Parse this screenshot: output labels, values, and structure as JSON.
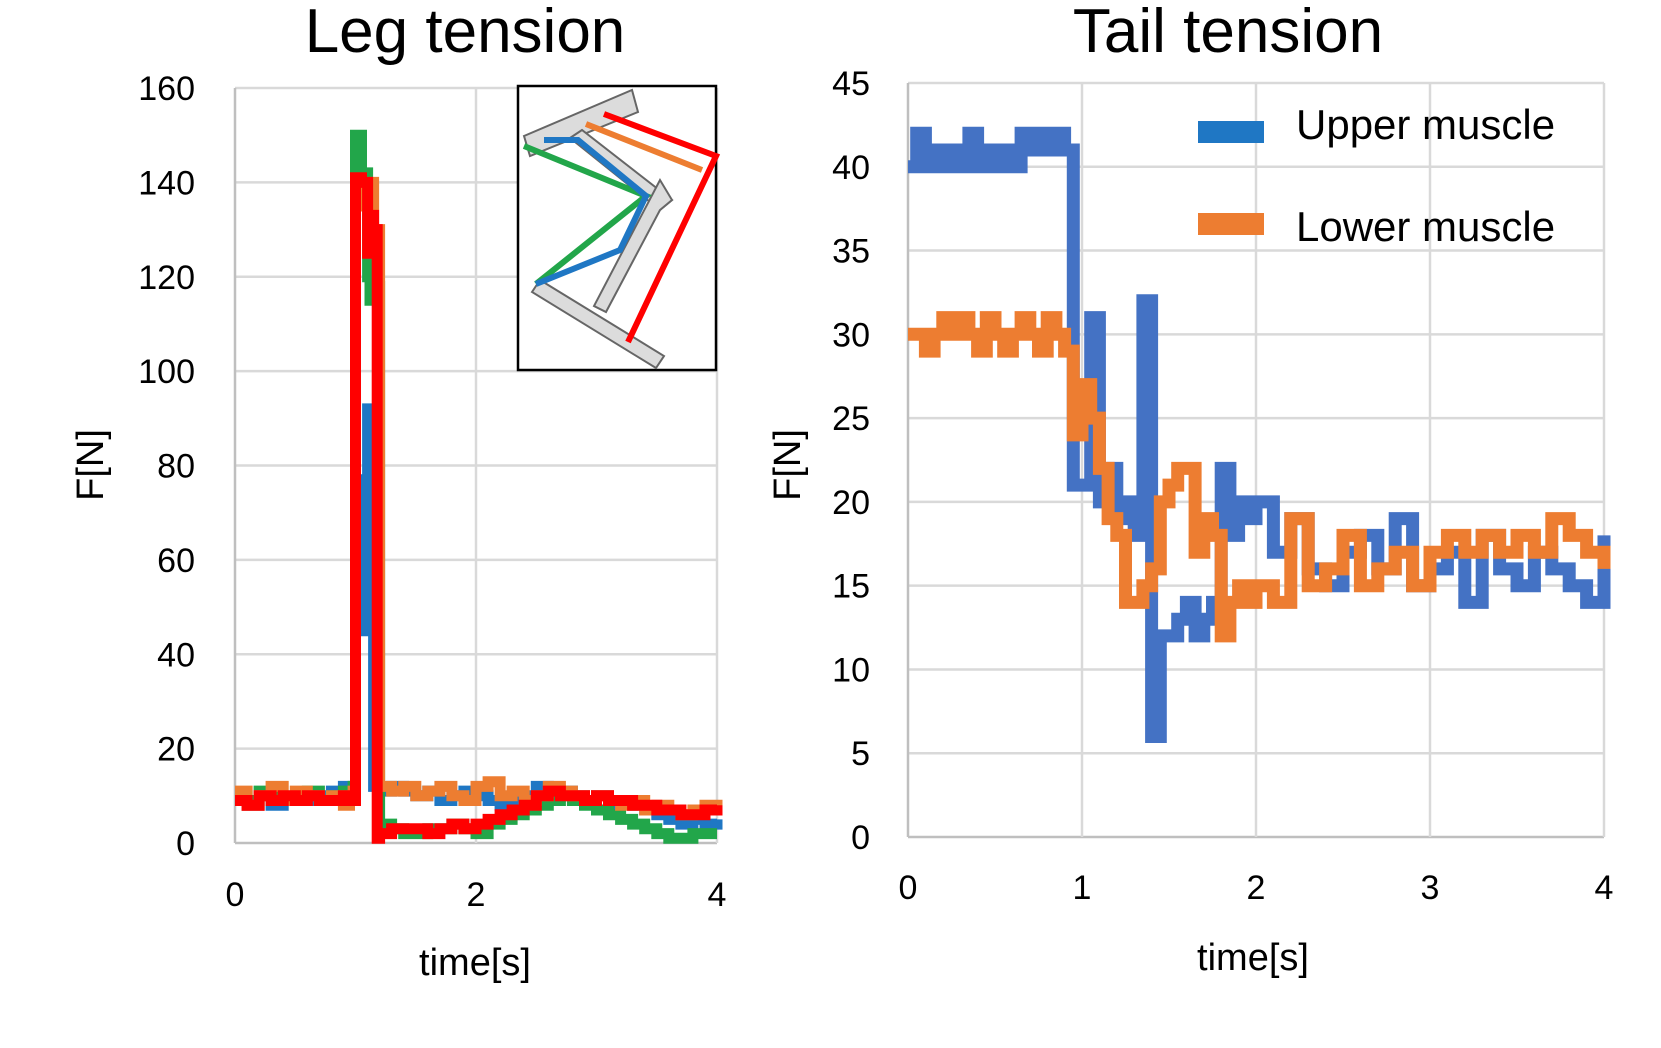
{
  "chart_data": [
    {
      "type": "line",
      "title": "Leg tension",
      "xlabel": "time[s]",
      "ylabel": "F[N]",
      "xlim": [
        0,
        4
      ],
      "ylim": [
        0,
        160
      ],
      "xticks": [
        "0",
        "2",
        "4"
      ],
      "yticks": [
        "0",
        "20",
        "40",
        "60",
        "80",
        "100",
        "120",
        "140",
        "160"
      ],
      "grid": true,
      "inset": "leg diagram with coloured muscle lines (blue, green, orange, red) over grey leg segments",
      "series": [
        {
          "color": "#1f77c4",
          "x": [
            0,
            0.1,
            0.2,
            0.3,
            0.4,
            0.5,
            0.6,
            0.7,
            0.8,
            0.9,
            0.95,
            0.98,
            1.0,
            1.05,
            1.08,
            1.1,
            1.13,
            1.15,
            1.2,
            1.3,
            1.4,
            1.5,
            1.6,
            1.7,
            1.8,
            1.9,
            2.0,
            2.1,
            2.2,
            2.3,
            2.4,
            2.5,
            2.6,
            2.7,
            2.8,
            2.9,
            3.0,
            3.1,
            3.2,
            3.3,
            3.4,
            3.5,
            3.6,
            3.7,
            3.8,
            3.9,
            4.0
          ],
          "y": [
            9,
            8,
            10,
            8,
            9,
            10,
            9,
            10,
            11,
            12,
            12,
            10,
            46,
            77,
            45,
            92,
            60,
            12,
            11,
            12,
            11,
            10,
            11,
            9,
            10,
            11,
            10,
            9,
            8,
            9,
            10,
            12,
            10,
            11,
            10,
            9,
            10,
            8,
            9,
            8,
            7,
            6,
            5,
            4,
            5,
            4,
            5
          ]
        },
        {
          "color": "#22a64a",
          "x": [
            0,
            0.1,
            0.2,
            0.3,
            0.4,
            0.5,
            0.6,
            0.7,
            0.8,
            0.9,
            0.95,
            0.98,
            1.0,
            1.05,
            1.1,
            1.12,
            1.15,
            1.2,
            1.3,
            1.4,
            1.5,
            1.6,
            1.7,
            1.8,
            1.9,
            2.0,
            2.1,
            2.2,
            2.3,
            2.4,
            2.5,
            2.6,
            2.7,
            2.8,
            2.9,
            3.0,
            3.1,
            3.2,
            3.3,
            3.4,
            3.5,
            3.6,
            3.7,
            3.8,
            3.9,
            4.0
          ],
          "y": [
            10,
            9,
            11,
            10,
            9,
            10,
            11,
            9,
            10,
            11,
            10,
            12,
            150,
            142,
            120,
            115,
            118,
            4,
            3,
            2,
            2,
            3,
            3,
            4,
            3,
            2,
            4,
            5,
            6,
            7,
            8,
            9,
            10,
            9,
            8,
            7,
            6,
            5,
            4,
            3,
            2,
            1,
            1,
            2,
            2,
            2
          ]
        },
        {
          "color": "#ed7d31",
          "x": [
            0,
            0.1,
            0.2,
            0.3,
            0.4,
            0.5,
            0.6,
            0.7,
            0.8,
            0.9,
            0.95,
            0.98,
            1.0,
            1.05,
            1.1,
            1.15,
            1.2,
            1.3,
            1.4,
            1.5,
            1.6,
            1.7,
            1.8,
            1.9,
            2.0,
            2.1,
            2.2,
            2.3,
            2.4,
            2.5,
            2.6,
            2.7,
            2.8,
            2.9,
            3.0,
            3.1,
            3.2,
            3.3,
            3.4,
            3.5,
            3.6,
            3.7,
            3.8,
            3.9,
            4.0
          ],
          "y": [
            11,
            8,
            10,
            12,
            9,
            11,
            10,
            9,
            10,
            8,
            10,
            11,
            138,
            135,
            140,
            130,
            12,
            11,
            12,
            10,
            11,
            12,
            10,
            9,
            12,
            13,
            10,
            11,
            9,
            10,
            12,
            11,
            10,
            9,
            10,
            9,
            8,
            9,
            7,
            8,
            7,
            6,
            7,
            8,
            7
          ]
        },
        {
          "color": "#ff0000",
          "x": [
            0,
            0.1,
            0.2,
            0.3,
            0.4,
            0.5,
            0.6,
            0.7,
            0.8,
            0.9,
            0.95,
            0.98,
            1.0,
            1.05,
            1.1,
            1.13,
            1.15,
            1.18,
            1.2,
            1.3,
            1.4,
            1.5,
            1.6,
            1.7,
            1.8,
            1.9,
            2.0,
            2.1,
            2.2,
            2.3,
            2.4,
            2.5,
            2.6,
            2.7,
            2.8,
            2.9,
            3.0,
            3.1,
            3.2,
            3.3,
            3.4,
            3.5,
            3.6,
            3.7,
            3.8,
            3.9,
            4.0
          ],
          "y": [
            9,
            8,
            10,
            9,
            10,
            9,
            10,
            9,
            9,
            10,
            9,
            9,
            141,
            140,
            125,
            133,
            130,
            1,
            2,
            3,
            3,
            3,
            2,
            3,
            4,
            3,
            4,
            5,
            6,
            7,
            8,
            10,
            11,
            10,
            10,
            9,
            10,
            9,
            9,
            8,
            8,
            7,
            7,
            6,
            6,
            7,
            8
          ]
        }
      ]
    },
    {
      "type": "line",
      "title": "Tail tension",
      "xlabel": "time[s]",
      "ylabel": "F[N]",
      "xlim": [
        0,
        4
      ],
      "ylim": [
        0,
        45
      ],
      "xticks": [
        "0",
        "1",
        "2",
        "3",
        "4"
      ],
      "yticks": [
        "0",
        "5",
        "10",
        "15",
        "20",
        "25",
        "30",
        "35",
        "40",
        "45"
      ],
      "grid": true,
      "legend_position": "top-right",
      "series": [
        {
          "name": "Upper muscle",
          "color": "#4472c4",
          "x": [
            0,
            0.05,
            0.1,
            0.15,
            0.2,
            0.25,
            0.3,
            0.35,
            0.4,
            0.45,
            0.5,
            0.55,
            0.6,
            0.65,
            0.7,
            0.75,
            0.8,
            0.85,
            0.9,
            0.95,
            1.0,
            1.05,
            1.1,
            1.15,
            1.2,
            1.25,
            1.3,
            1.35,
            1.4,
            1.45,
            1.5,
            1.55,
            1.6,
            1.65,
            1.7,
            1.75,
            1.8,
            1.85,
            1.9,
            1.95,
            2.0,
            2.1,
            2.2,
            2.3,
            2.4,
            2.5,
            2.6,
            2.7,
            2.8,
            2.9,
            3.0,
            3.1,
            3.2,
            3.3,
            3.4,
            3.5,
            3.6,
            3.7,
            3.8,
            3.9,
            4.0
          ],
          "y": [
            40,
            42,
            40,
            41,
            40,
            41,
            40,
            42,
            40,
            41,
            40,
            41,
            40,
            42,
            41,
            42,
            41,
            42,
            41,
            21,
            21,
            31,
            20,
            22,
            19,
            20,
            18,
            32,
            6,
            12,
            12,
            13,
            14,
            12,
            13,
            14,
            22,
            18,
            20,
            19,
            20,
            17,
            19,
            16,
            15,
            17,
            18,
            16,
            19,
            15,
            16,
            17,
            14,
            18,
            16,
            15,
            17,
            16,
            15,
            14,
            18
          ]
        },
        {
          "name": "Lower muscle",
          "color": "#ed7d31",
          "x": [
            0,
            0.05,
            0.1,
            0.15,
            0.2,
            0.25,
            0.3,
            0.35,
            0.4,
            0.45,
            0.5,
            0.55,
            0.6,
            0.65,
            0.7,
            0.75,
            0.8,
            0.85,
            0.9,
            0.95,
            1.0,
            1.05,
            1.1,
            1.15,
            1.2,
            1.25,
            1.3,
            1.35,
            1.4,
            1.45,
            1.5,
            1.55,
            1.6,
            1.65,
            1.7,
            1.75,
            1.8,
            1.85,
            1.9,
            1.95,
            2.0,
            2.1,
            2.2,
            2.3,
            2.4,
            2.5,
            2.6,
            2.7,
            2.8,
            2.9,
            3.0,
            3.1,
            3.2,
            3.3,
            3.4,
            3.5,
            3.6,
            3.7,
            3.8,
            3.9,
            4.0
          ],
          "y": [
            30,
            30,
            29,
            30,
            31,
            30,
            31,
            30,
            29,
            31,
            30,
            29,
            30,
            31,
            30,
            29,
            31,
            30,
            29,
            24,
            27,
            25,
            22,
            19,
            18,
            14,
            14,
            15,
            16,
            20,
            21,
            22,
            22,
            17,
            19,
            18,
            12,
            14,
            15,
            14,
            15,
            14,
            19,
            15,
            16,
            18,
            15,
            16,
            17,
            15,
            17,
            18,
            17,
            18,
            17,
            18,
            17,
            19,
            18,
            17,
            16
          ]
        }
      ]
    }
  ]
}
